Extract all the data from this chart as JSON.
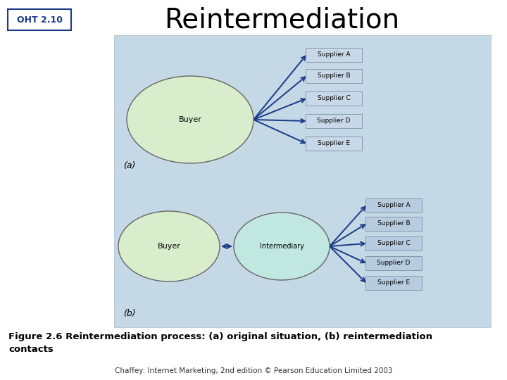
{
  "title": "Reintermediation",
  "oht_label": "OHT 2.10",
  "bg_color": "#ffffff",
  "diagram_bg": "#c5d8e5",
  "buyer_fill": "#d8edcc",
  "buyer_stroke": "#666666",
  "intermediary_fill": "#c0e8e0",
  "supplier_box_fill_a": "#c8d8e8",
  "supplier_box_fill_b": "#b8cce0",
  "arrow_color": "#1a3a8a",
  "suppliers": [
    "Supplier A",
    "Supplier B",
    "Supplier C",
    "Supplier D",
    "Supplier E"
  ],
  "caption": "Figure 2.6 Reintermediation process: (a) original situation, (b) reintermediation\ncontacts",
  "footer": "Chaffey: Internet Marketing, 2nd edition © Pearson Education Limited 2003",
  "diagram_a_label": "(a)",
  "diagram_b_label": "(b)"
}
